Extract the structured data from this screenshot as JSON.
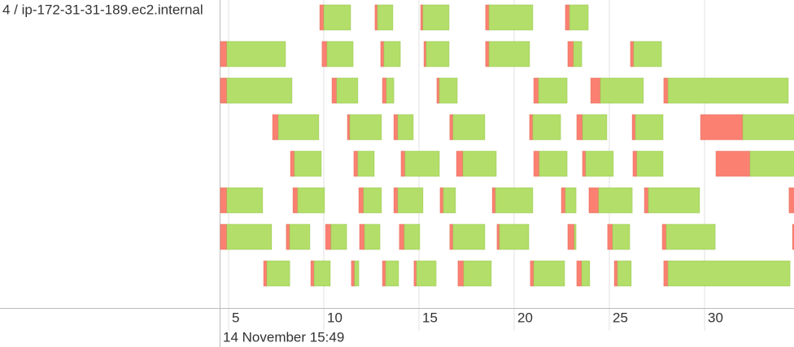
{
  "chart_data": {
    "type": "timeline",
    "lane_label": "4 / ip-172-31-31-189.ec2.internal",
    "x_label": "14 November 15:49",
    "xlim": [
      4.53,
      34.7
    ],
    "xticks": [
      5,
      10,
      15,
      20,
      25,
      30
    ],
    "grid": true,
    "segment_colors": [
      "#fb8072",
      "#b3de69"
    ],
    "lanes": [
      {
        "tasks": [
          [
            9.79,
            10.0,
            11.41
          ],
          [
            12.69,
            12.82,
            13.63
          ],
          [
            15.09,
            15.21,
            16.58
          ],
          [
            18.5,
            18.68,
            20.98
          ],
          [
            22.69,
            22.91,
            23.89
          ]
        ]
      },
      {
        "tasks": [
          [
            4.57,
            4.91,
            7.99
          ],
          [
            9.91,
            10.17,
            11.54
          ],
          [
            12.99,
            13.16,
            14.02
          ],
          [
            15.26,
            15.38,
            16.58
          ],
          [
            18.5,
            18.68,
            20.81
          ],
          [
            22.82,
            23.12,
            23.55
          ],
          [
            26.11,
            26.28,
            27.74
          ]
        ]
      },
      {
        "tasks": [
          [
            4.57,
            4.91,
            8.33
          ],
          [
            10.43,
            10.68,
            11.79
          ],
          [
            13.08,
            13.29,
            13.68
          ],
          [
            15.94,
            16.07,
            17.01
          ],
          [
            21.03,
            21.28,
            22.78
          ],
          [
            24.02,
            24.53,
            26.79
          ],
          [
            27.86,
            28.08,
            34.4
          ]
        ]
      },
      {
        "tasks": [
          [
            7.31,
            7.61,
            9.74
          ],
          [
            11.24,
            11.37,
            13.03
          ],
          [
            13.68,
            13.89,
            14.7
          ],
          [
            16.62,
            16.79,
            18.46
          ],
          [
            20.81,
            20.98,
            22.44
          ],
          [
            23.29,
            23.59,
            24.87
          ],
          [
            26.2,
            26.37,
            27.82
          ],
          [
            29.79,
            32.01,
            35.0
          ]
        ]
      },
      {
        "tasks": [
          [
            8.25,
            8.46,
            9.87
          ],
          [
            11.58,
            11.79,
            12.65
          ],
          [
            14.06,
            14.27,
            16.07
          ],
          [
            16.97,
            17.31,
            19.06
          ],
          [
            21.03,
            21.32,
            22.78
          ],
          [
            23.59,
            23.76,
            25.21
          ],
          [
            26.24,
            26.45,
            27.82
          ],
          [
            30.6,
            32.39,
            35.0
          ]
        ]
      },
      {
        "tasks": [
          [
            4.57,
            4.91,
            6.79
          ],
          [
            8.38,
            8.63,
            10.04
          ],
          [
            11.84,
            12.09,
            13.03
          ],
          [
            13.68,
            13.89,
            15.21
          ],
          [
            16.11,
            16.28,
            16.92
          ],
          [
            18.85,
            19.02,
            20.98
          ],
          [
            22.48,
            22.69,
            23.25
          ],
          [
            23.93,
            24.44,
            26.2
          ],
          [
            26.84,
            27.05,
            29.74
          ],
          [
            34.44,
            35.0,
            35.0
          ]
        ]
      },
      {
        "tasks": [
          [
            4.57,
            4.91,
            7.26
          ],
          [
            8.03,
            8.21,
            9.27
          ],
          [
            10.09,
            10.38,
            11.2
          ],
          [
            11.88,
            12.14,
            12.95
          ],
          [
            13.97,
            14.23,
            15.04
          ],
          [
            16.62,
            16.79,
            18.46
          ],
          [
            19.1,
            19.23,
            20.77
          ],
          [
            22.82,
            23.16,
            23.25
          ],
          [
            24.91,
            25.17,
            26.07
          ],
          [
            27.78,
            27.99,
            30.56
          ],
          [
            34.62,
            35.0,
            35.0
          ]
        ]
      },
      {
        "tasks": [
          [
            6.84,
            7.01,
            8.21
          ],
          [
            9.32,
            9.49,
            10.34
          ],
          [
            11.45,
            11.62,
            11.84
          ],
          [
            13.08,
            13.25,
            13.93
          ],
          [
            14.74,
            14.87,
            15.9
          ],
          [
            17.05,
            17.35,
            18.8
          ],
          [
            20.85,
            21.03,
            22.65
          ],
          [
            23.29,
            23.55,
            23.97
          ],
          [
            25.26,
            25.43,
            26.15
          ],
          [
            27.86,
            28.08,
            34.49
          ]
        ]
      }
    ]
  }
}
